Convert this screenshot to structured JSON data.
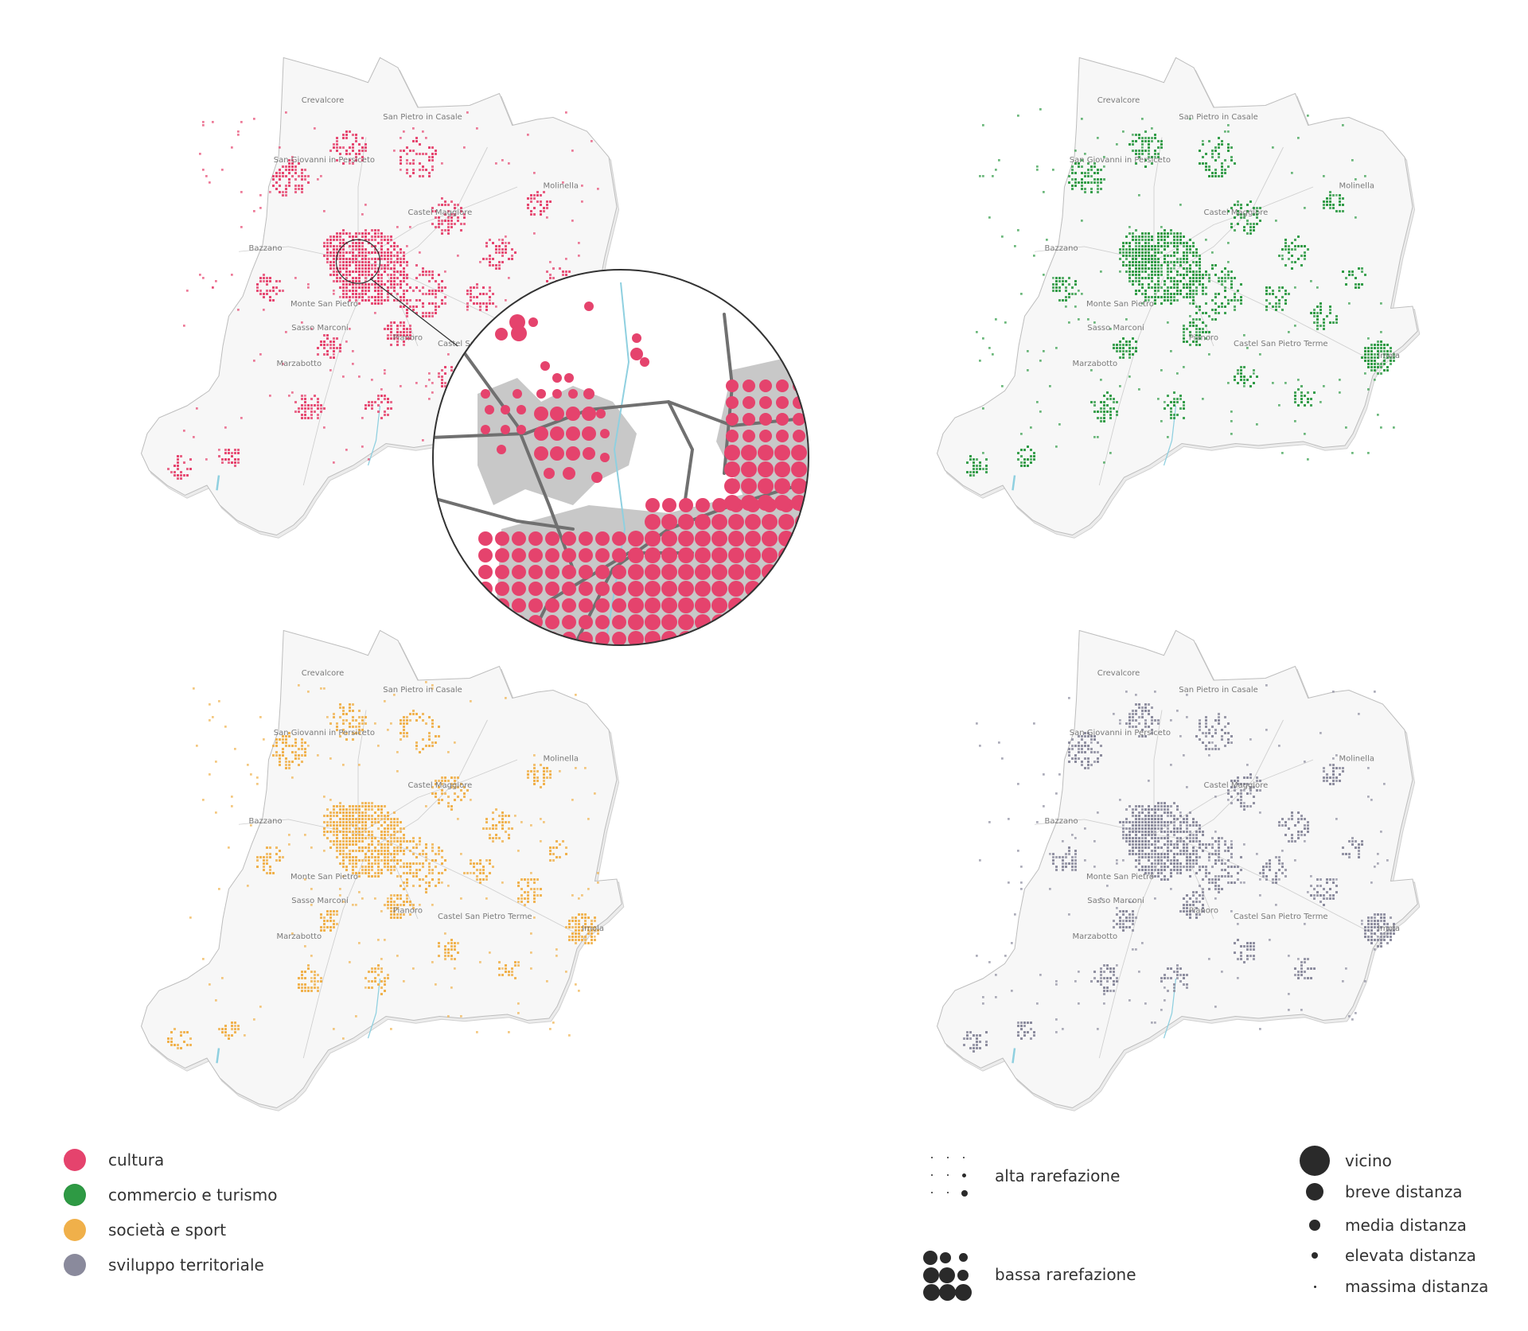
{
  "map": {
    "labels": [
      "Crevalcore",
      "San Pietro in Casale",
      "San Giovanni in Persiceto",
      "Molinella",
      "Castel Maggiore",
      "Bazzano",
      "Monte San Pietro",
      "Sasso Marconi",
      "Pianoro",
      "Castel San Pietro Terme",
      "Marzabotto",
      "Imola"
    ]
  },
  "panels": [
    {
      "category": "cultura",
      "color": "#e5436d"
    },
    {
      "category": "commercio e turismo",
      "color": "#2e9a44"
    },
    {
      "category": "società e sport",
      "color": "#f0b04a"
    },
    {
      "category": "sviluppo territoriale",
      "color": "#8a8a9c"
    }
  ],
  "legend": {
    "categories": [
      {
        "label": "cultura",
        "color": "#e5436d"
      },
      {
        "label": "commercio e turismo",
        "color": "#2e9a44"
      },
      {
        "label": "società e sport",
        "color": "#f0b04a"
      },
      {
        "label": "sviluppo territoriale",
        "color": "#8a8a9c"
      }
    ],
    "rarefaction": {
      "high": "alta rarefazione",
      "low": "bassa rarefazione"
    },
    "distance": [
      {
        "label": "vicino",
        "level": 5
      },
      {
        "label": "breve distanza",
        "level": 4
      },
      {
        "label": "media distanza",
        "level": 3
      },
      {
        "label": "elevata distanza",
        "level": 2
      },
      {
        "label": "massima distanza",
        "level": 1
      }
    ]
  }
}
